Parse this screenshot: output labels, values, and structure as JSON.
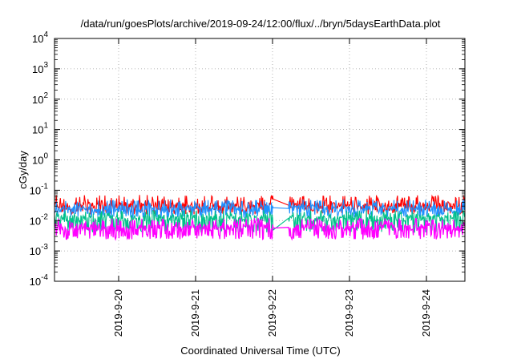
{
  "chart_data": {
    "type": "line",
    "title": "/data/run/goesPlots/archive/2019-09-24/12:00/flux/../bryn/5daysEarthData.plot",
    "xlabel": "Coordinated Universal Time (UTC)",
    "ylabel": "cGy/day",
    "yscale": "log",
    "ylim": [
      0.0001,
      10000
    ],
    "xlim": [
      "2019-09-19 04:00",
      "2019-09-24 12:00"
    ],
    "grid": true,
    "legend": "none",
    "y_tick_labels": [
      {
        "base": "10",
        "exp": "-4",
        "value": 0.0001
      },
      {
        "base": "10",
        "exp": "-3",
        "value": 0.001
      },
      {
        "base": "10",
        "exp": "-2",
        "value": 0.01
      },
      {
        "base": "10",
        "exp": "-1",
        "value": 0.1
      },
      {
        "base": "10",
        "exp": "0",
        "value": 1
      },
      {
        "base": "10",
        "exp": "1",
        "value": 10
      },
      {
        "base": "10",
        "exp": "2",
        "value": 100
      },
      {
        "base": "10",
        "exp": "3",
        "value": 1000
      },
      {
        "base": "10",
        "exp": "4",
        "value": 10000
      }
    ],
    "x_tick_labels": [
      {
        "label": "2019-9-20",
        "date": "2019-09-20 00:00"
      },
      {
        "label": "2019-9-21",
        "date": "2019-09-21 00:00"
      },
      {
        "label": "2019-9-22",
        "date": "2019-09-22 00:00"
      },
      {
        "label": "2019-9-23",
        "date": "2019-09-23 00:00"
      },
      {
        "label": "2019-9-24",
        "date": "2019-09-24 00:00"
      }
    ],
    "gap": [
      "2019-09-22 00:20",
      "2019-09-22 05:00"
    ],
    "series": [
      {
        "color": "#ff0000",
        "typical": 0.032,
        "low": 0.02,
        "high": 0.07
      },
      {
        "color": "#1e90ff",
        "typical": 0.025,
        "low": 0.015,
        "high": 0.05
      },
      {
        "color": "#00c08a",
        "typical": 0.012,
        "low": 0.005,
        "high": 0.022
      },
      {
        "color": "#ff00ff",
        "typical": 0.006,
        "low": 0.003,
        "high": 0.012
      }
    ]
  }
}
